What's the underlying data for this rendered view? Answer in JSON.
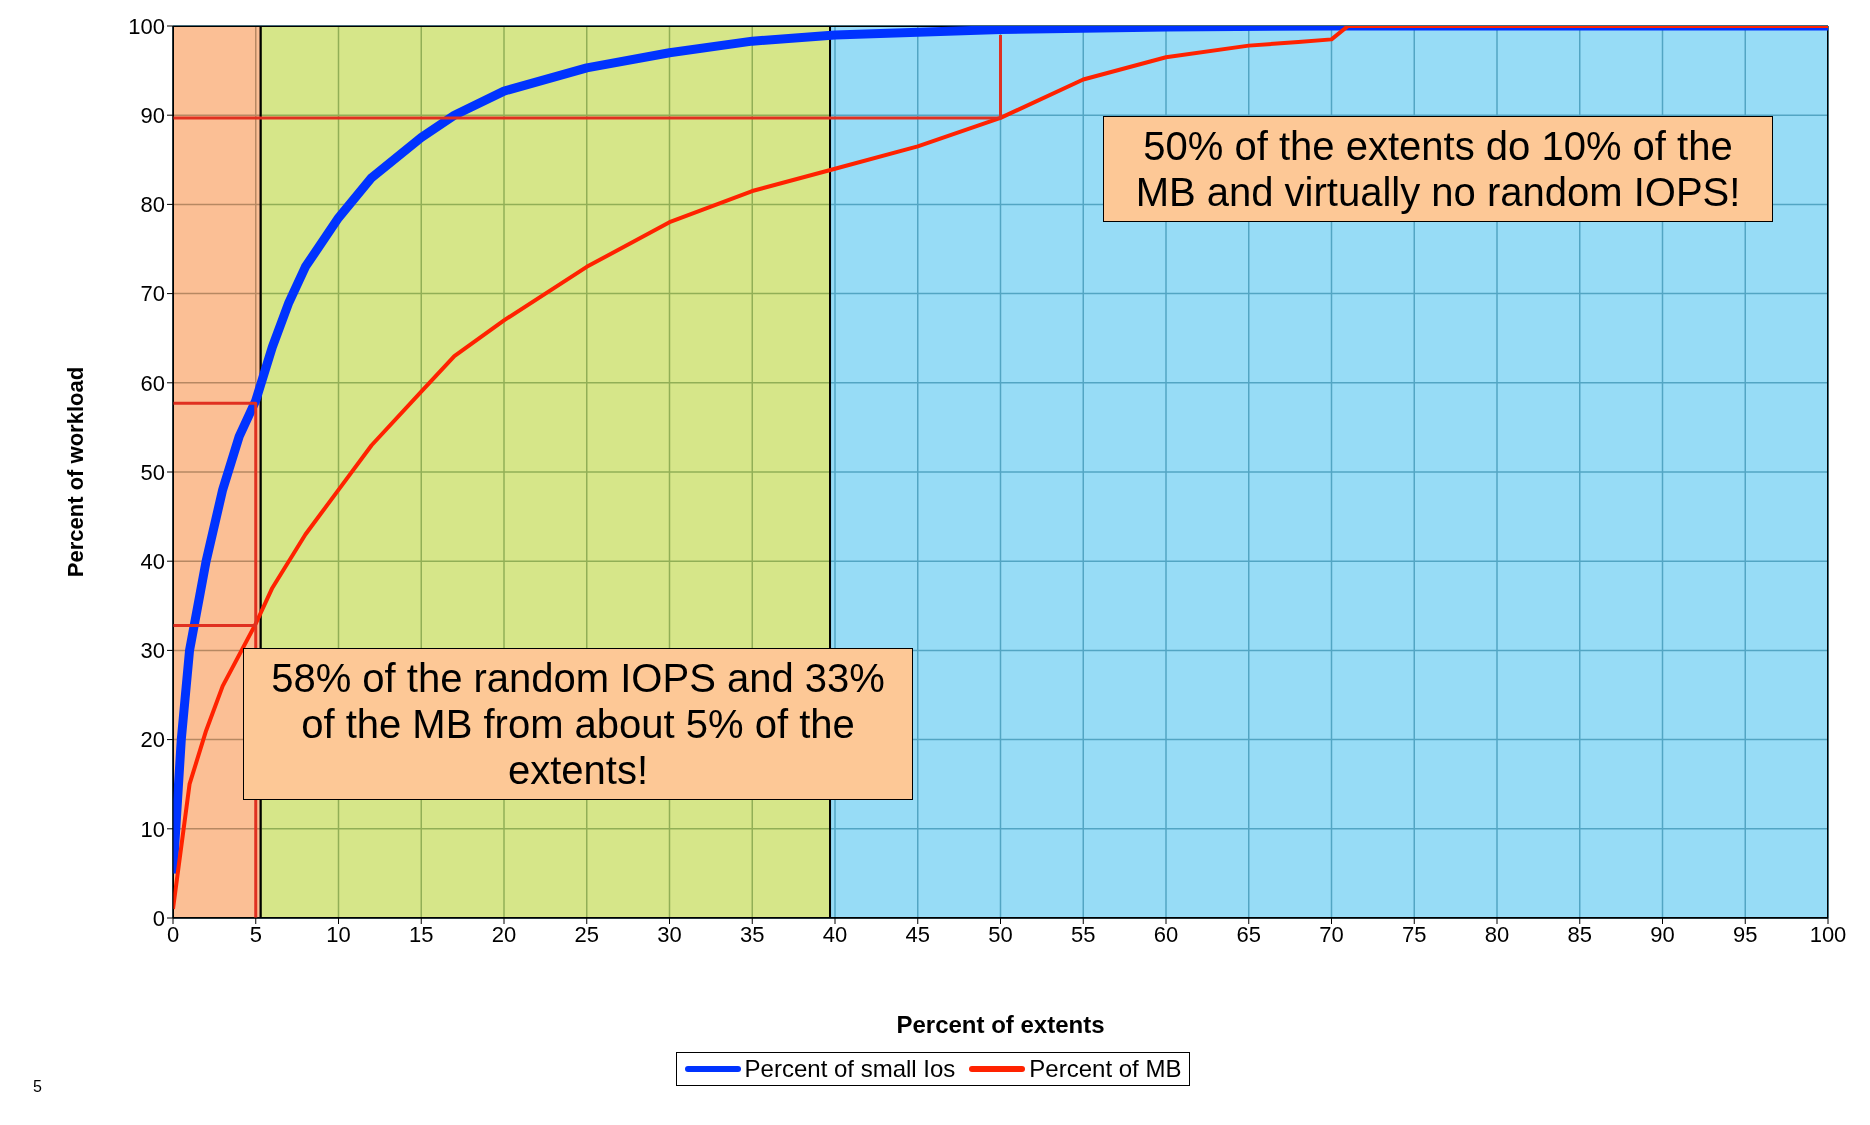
{
  "chart_data": {
    "type": "line",
    "xlabel": "Percent of extents",
    "ylabel": "Percent of workload",
    "xlim": [
      0,
      100
    ],
    "ylim": [
      0,
      100
    ],
    "xticks": [
      0,
      5,
      10,
      15,
      20,
      25,
      30,
      35,
      40,
      45,
      50,
      55,
      60,
      65,
      70,
      75,
      80,
      85,
      90,
      95,
      100
    ],
    "yticks": [
      0,
      10,
      20,
      30,
      40,
      50,
      60,
      70,
      80,
      90,
      100
    ],
    "grid": true,
    "legend": "bottom",
    "marker": "none",
    "line_style": "solid",
    "bands": [
      {
        "axis": "x",
        "from": 0,
        "to": 5.3,
        "color": "#f9a66c"
      },
      {
        "axis": "x",
        "from": 5.3,
        "to": 39.7,
        "color": "#c6dd5c"
      },
      {
        "axis": "x",
        "from": 39.7,
        "to": 100,
        "color": "#6fcff2"
      }
    ],
    "series": [
      {
        "name": "Percent of small Ios",
        "color": "#0033ff",
        "x": [
          0,
          0.5,
          1,
          2,
          3,
          4,
          5,
          6,
          7,
          8,
          10,
          12,
          15,
          17,
          20,
          25,
          30,
          35,
          40,
          50,
          60,
          70,
          100
        ],
        "values": [
          5,
          20,
          30,
          40,
          48,
          54,
          58,
          64,
          69,
          73,
          78.5,
          83,
          87.5,
          90,
          92.7,
          95.3,
          97,
          98.3,
          99,
          99.6,
          99.9,
          100,
          100
        ]
      },
      {
        "name": "Percent of MB",
        "color": "#ff2200",
        "x": [
          0,
          1,
          2,
          3,
          5,
          6,
          8,
          10,
          12,
          15,
          17,
          20,
          25,
          30,
          35,
          40,
          45,
          50,
          55,
          60,
          65,
          68,
          70,
          71,
          100
        ],
        "values": [
          1,
          15,
          21,
          26,
          33,
          37,
          43,
          48,
          53,
          59,
          63,
          67,
          73,
          78,
          81.5,
          84,
          86.5,
          89.7,
          94,
          96.5,
          97.8,
          98.2,
          98.5,
          100,
          100
        ]
      },
      {
        "color": "#e03020",
        "x": [
          0,
          50,
          50
        ],
        "values": [
          89.7,
          89.7,
          99
        ]
      },
      {
        "color": "#e03020",
        "x": [
          0,
          5,
          5
        ],
        "values": [
          57.7,
          57.7,
          0
        ]
      },
      {
        "color": "#e03020",
        "x": [
          0,
          5
        ],
        "values": [
          32.8,
          32.8
        ]
      }
    ],
    "annotations": [
      "50% of the extents do 10% of the MB and virtually no random IOPS!",
      "58% of the random IOPS and 33% of the MB from about 5% of the extents!",
      "5"
    ]
  }
}
